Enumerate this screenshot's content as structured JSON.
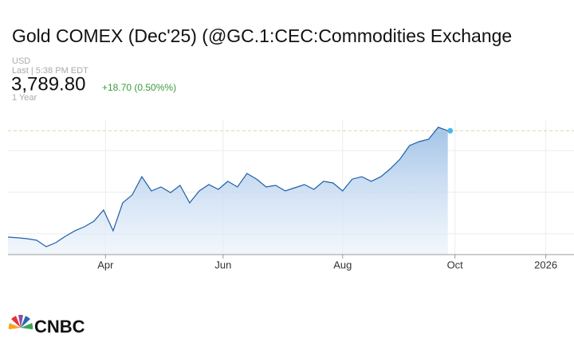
{
  "chart_data": {
    "type": "area",
    "title": "Gold COMEX (Dec'25) (@GC.1:CEC:Commodities Exchange",
    "currency": "USD",
    "last_time": "Last | 5:38 PM EDT",
    "price": "3,789.80",
    "change": "+18.70 (0.50%%)",
    "period": "1 Year",
    "logo": "CNBC",
    "x": [
      0,
      1,
      2,
      3,
      4,
      5,
      6,
      7,
      8,
      9,
      10,
      11,
      12,
      13,
      14,
      15,
      16,
      17,
      18,
      19,
      20,
      21,
      22,
      23,
      24,
      25,
      26,
      27,
      28,
      29,
      30,
      31,
      32,
      33,
      34,
      35,
      36,
      37,
      38,
      39,
      40,
      41,
      42,
      43,
      44,
      45,
      46
    ],
    "values": [
      2768,
      2761,
      2753,
      2738,
      2676,
      2715,
      2776,
      2829,
      2868,
      2921,
      3028,
      2829,
      3097,
      3174,
      3349,
      3212,
      3250,
      3196,
      3265,
      3097,
      3212,
      3273,
      3227,
      3304,
      3250,
      3380,
      3326,
      3250,
      3265,
      3212,
      3242,
      3273,
      3227,
      3304,
      3288,
      3212,
      3326,
      3349,
      3304,
      3349,
      3426,
      3518,
      3648,
      3686,
      3709,
      3824,
      3789.8
    ],
    "color": "#1f5fa8",
    "xlim": [
      0,
      59.2
    ],
    "xticks": [
      {
        "value": 10.2,
        "label": "Apr"
      },
      {
        "value": 22.5,
        "label": "Jun"
      },
      {
        "value": 35,
        "label": "Aug"
      },
      {
        "value": 46.75,
        "label": "Oct"
      },
      {
        "value": 56.25,
        "label": "2026"
      }
    ],
    "ylim": [
      2600,
      3900
    ],
    "yticks": [
      2800,
      3200,
      3600
    ],
    "grid": true
  }
}
